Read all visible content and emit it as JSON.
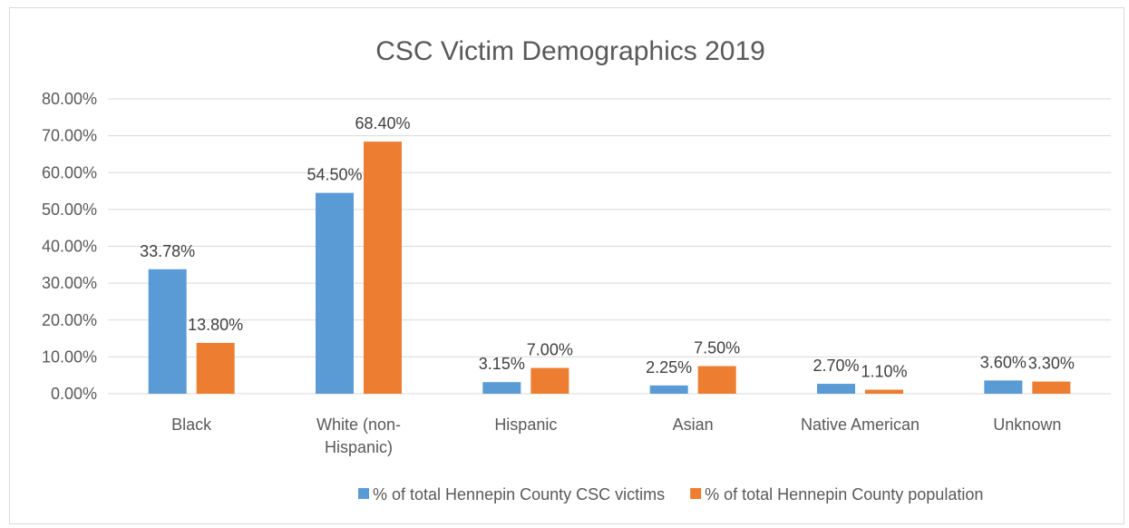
{
  "chart_data": {
    "type": "bar",
    "title": "CSC Victim Demographics 2019",
    "xlabel": "",
    "ylabel": "",
    "categories": [
      [
        "Black"
      ],
      [
        "White (non-",
        "Hispanic)"
      ],
      [
        "Hispanic"
      ],
      [
        "Asian"
      ],
      [
        "Native American"
      ],
      [
        "Unknown"
      ]
    ],
    "series": [
      {
        "name": "% of total Hennepin County CSC victims",
        "color": "#5b9bd5",
        "values": [
          33.78,
          54.5,
          3.15,
          2.25,
          2.7,
          3.6
        ],
        "labels": [
          "33.78%",
          "54.50%",
          "3.15%",
          "2.25%",
          "2.70%",
          "3.60%"
        ]
      },
      {
        "name": "% of total Hennepin County population",
        "color": "#ed7d31",
        "values": [
          13.8,
          68.4,
          7.0,
          7.5,
          1.1,
          3.3
        ],
        "labels": [
          "13.80%",
          "68.40%",
          "7.00%",
          "7.50%",
          "1.10%",
          "3.30%"
        ]
      }
    ],
    "ylim": [
      0,
      80
    ],
    "yticks": [
      0,
      10,
      20,
      30,
      40,
      50,
      60,
      70,
      80
    ],
    "ytick_labels": [
      "0.00%",
      "10.00%",
      "20.00%",
      "30.00%",
      "40.00%",
      "50.00%",
      "60.00%",
      "70.00%",
      "80.00%"
    ],
    "grid": true,
    "legend_position": "bottom"
  }
}
